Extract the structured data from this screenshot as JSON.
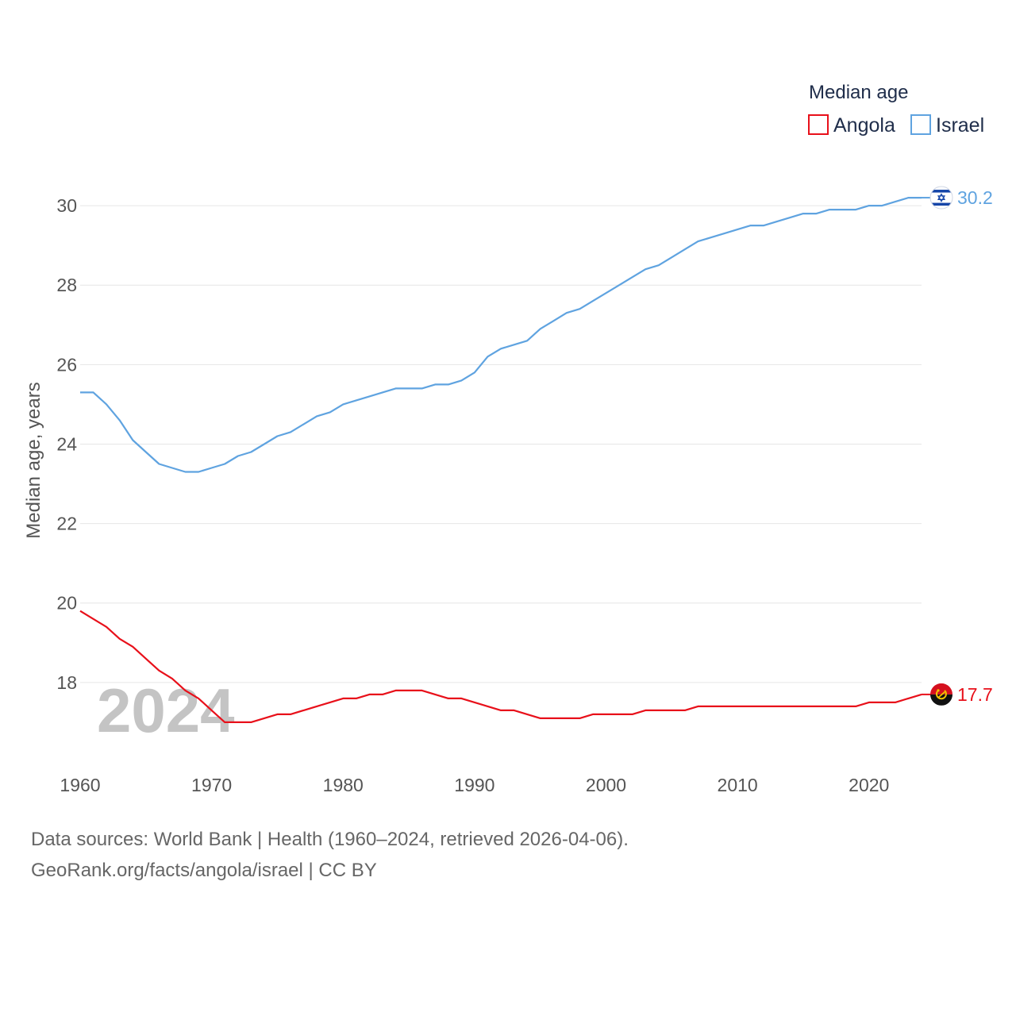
{
  "chart_data": {
    "type": "line",
    "title": "",
    "xlabel": "",
    "ylabel": "Median age, years",
    "xlim": [
      1960,
      2024
    ],
    "ylim": [
      16,
      31
    ],
    "yticks": [
      18,
      20,
      22,
      24,
      26,
      28,
      30
    ],
    "xticks": [
      1960,
      1970,
      1980,
      1990,
      2000,
      2010,
      2020
    ],
    "grid": true,
    "legend": {
      "title": "Median age",
      "position": "top-right"
    },
    "watermark_year": "2024",
    "x": [
      1960,
      1961,
      1962,
      1963,
      1964,
      1965,
      1966,
      1967,
      1968,
      1969,
      1970,
      1971,
      1972,
      1973,
      1974,
      1975,
      1976,
      1977,
      1978,
      1979,
      1980,
      1981,
      1982,
      1983,
      1984,
      1985,
      1986,
      1987,
      1988,
      1989,
      1990,
      1991,
      1992,
      1993,
      1994,
      1995,
      1996,
      1997,
      1998,
      1999,
      2000,
      2001,
      2002,
      2003,
      2004,
      2005,
      2006,
      2007,
      2008,
      2009,
      2010,
      2011,
      2012,
      2013,
      2014,
      2015,
      2016,
      2017,
      2018,
      2019,
      2020,
      2021,
      2022,
      2023,
      2024
    ],
    "series": [
      {
        "name": "Angola",
        "color": "#e8101a",
        "end_label": "17.7",
        "flag": "angola-flag",
        "values": [
          19.8,
          19.6,
          19.4,
          19.1,
          18.9,
          18.6,
          18.3,
          18.1,
          17.8,
          17.6,
          17.3,
          17.0,
          17.0,
          17.0,
          17.1,
          17.2,
          17.2,
          17.3,
          17.4,
          17.5,
          17.6,
          17.6,
          17.7,
          17.7,
          17.8,
          17.8,
          17.8,
          17.7,
          17.6,
          17.6,
          17.5,
          17.4,
          17.3,
          17.3,
          17.2,
          17.1,
          17.1,
          17.1,
          17.1,
          17.2,
          17.2,
          17.2,
          17.2,
          17.3,
          17.3,
          17.3,
          17.3,
          17.4,
          17.4,
          17.4,
          17.4,
          17.4,
          17.4,
          17.4,
          17.4,
          17.4,
          17.4,
          17.4,
          17.4,
          17.4,
          17.5,
          17.5,
          17.5,
          17.6,
          17.7
        ]
      },
      {
        "name": "Israel",
        "color": "#5fa3e0",
        "end_label": "30.2",
        "flag": "israel-flag",
        "values": [
          25.3,
          25.3,
          25.0,
          24.6,
          24.1,
          23.8,
          23.5,
          23.4,
          23.3,
          23.3,
          23.4,
          23.5,
          23.7,
          23.8,
          24.0,
          24.2,
          24.3,
          24.5,
          24.7,
          24.8,
          25.0,
          25.1,
          25.2,
          25.3,
          25.4,
          25.4,
          25.4,
          25.5,
          25.5,
          25.6,
          25.8,
          26.2,
          26.4,
          26.5,
          26.6,
          26.9,
          27.1,
          27.3,
          27.4,
          27.6,
          27.8,
          28.0,
          28.2,
          28.4,
          28.5,
          28.7,
          28.9,
          29.1,
          29.2,
          29.3,
          29.4,
          29.5,
          29.5,
          29.6,
          29.7,
          29.8,
          29.8,
          29.9,
          29.9,
          29.9,
          30.0,
          30.0,
          30.1,
          30.2,
          30.2
        ]
      }
    ]
  },
  "footer": {
    "line1": "Data sources: World Bank | Health (1960–2024, retrieved 2026-04-06).",
    "line2": "GeoRank.org/facts/angola/israel | CC BY"
  }
}
